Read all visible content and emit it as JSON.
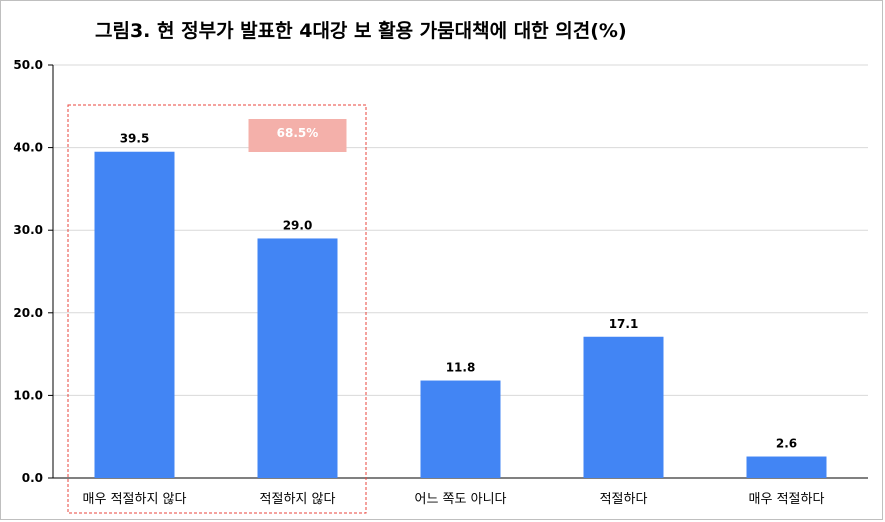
{
  "chart_data": {
    "type": "bar",
    "title": "그림3. 현 정부가 발표한 4대강 보 활용 가뭄대책에 대한 의견(%)",
    "categories": [
      "매우 적절하지 않다",
      "적절하지 않다",
      "어느 쪽도 아니다",
      "적절하다",
      "매우 적절하다"
    ],
    "values": [
      39.5,
      29.0,
      11.8,
      17.1,
      2.6
    ],
    "value_labels": [
      "39.5",
      "29.0",
      "11.8",
      "17.1",
      "2.6"
    ],
    "ylim": [
      0,
      50
    ],
    "yticks": [
      "0.0",
      "10.0",
      "20.0",
      "30.0",
      "40.0",
      "50.0"
    ],
    "grid": true,
    "bar_color": "#4285f4",
    "annotation": {
      "text": "68.5%",
      "group": [
        "매우 적절하지 않다",
        "적절하지 않다"
      ],
      "box_color": "#f4b0aa",
      "border_color": "#e8453c"
    },
    "xlabel": "",
    "ylabel": ""
  }
}
